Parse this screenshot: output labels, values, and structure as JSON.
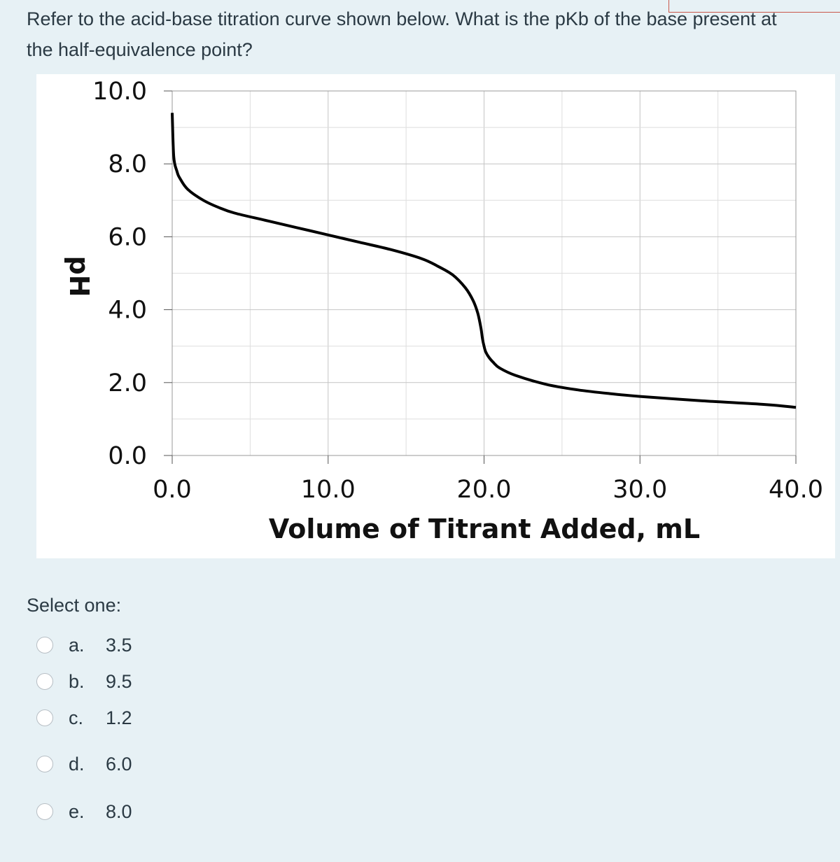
{
  "question": {
    "text": "Refer to the acid-base titration curve shown below. What is the pKb of the base present at the half-equivalence point?"
  },
  "chart_data": {
    "type": "line",
    "title": "",
    "xlabel": "Volume of Titrant Added, mL",
    "ylabel": "pH",
    "xlim": [
      0,
      40
    ],
    "ylim": [
      0,
      10
    ],
    "x_ticks": [
      "0.0",
      "10.0",
      "20.0",
      "30.0",
      "40.0"
    ],
    "y_ticks": [
      "10.0",
      "8.0",
      "6.0",
      "4.0",
      "2.0",
      "0.0"
    ],
    "grid": true,
    "series": [
      {
        "color": "#000000",
        "x": [
          0,
          0.1,
          0.3,
          0.5,
          1,
          2,
          3,
          4,
          6,
          8,
          10,
          12,
          14,
          16,
          17,
          18,
          18.8,
          19.3,
          19.6,
          19.8,
          19.9,
          20.0,
          20.1,
          20.3,
          20.6,
          21,
          22,
          24,
          26,
          28,
          30,
          34,
          38,
          40
        ],
        "y": [
          9.4,
          8.2,
          7.8,
          7.6,
          7.3,
          7.0,
          6.8,
          6.65,
          6.45,
          6.25,
          6.05,
          5.85,
          5.65,
          5.4,
          5.2,
          4.95,
          4.6,
          4.25,
          3.9,
          3.5,
          3.2,
          3.0,
          2.85,
          2.7,
          2.55,
          2.4,
          2.2,
          1.95,
          1.8,
          1.7,
          1.62,
          1.5,
          1.4,
          1.32
        ]
      }
    ]
  },
  "prompt": {
    "select_label": "Select one:"
  },
  "options": [
    {
      "letter": "a.",
      "value": "3.5"
    },
    {
      "letter": "b.",
      "value": "9.5"
    },
    {
      "letter": "c.",
      "value": "1.2"
    },
    {
      "letter": "d.",
      "value": "6.0"
    },
    {
      "letter": "e.",
      "value": "8.0"
    }
  ]
}
